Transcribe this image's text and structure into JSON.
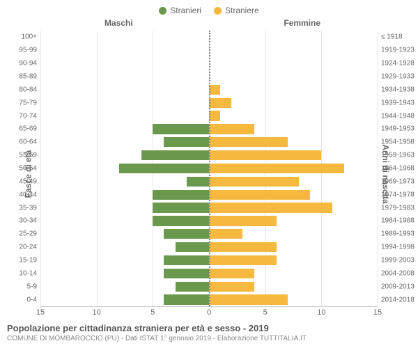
{
  "legend": {
    "series_m": {
      "label": "Stranieri",
      "color": "#6a994e"
    },
    "series_f": {
      "label": "Straniere",
      "color": "#f4b93e"
    }
  },
  "headers": {
    "male": "Maschi",
    "female": "Femmine"
  },
  "axis_labels": {
    "left": "Fasce di età",
    "right": "Anni di nascita"
  },
  "chart": {
    "type": "population-pyramid",
    "xlim": 15,
    "x_ticks": [
      15,
      10,
      5,
      0,
      5,
      10,
      15
    ],
    "background_color": "#ffffff",
    "grid_color": "#e5e5e5",
    "zero_line_color": "#888888",
    "male_color": "#6a994e",
    "female_color": "#f4b93e",
    "label_fontsize": 10,
    "tick_fontsize": 11,
    "rows": [
      {
        "age": "100+",
        "cohort": "≤ 1918",
        "m": 0,
        "f": 0
      },
      {
        "age": "95-99",
        "cohort": "1919-1923",
        "m": 0,
        "f": 0
      },
      {
        "age": "90-94",
        "cohort": "1924-1928",
        "m": 0,
        "f": 0
      },
      {
        "age": "85-89",
        "cohort": "1929-1933",
        "m": 0,
        "f": 0
      },
      {
        "age": "80-84",
        "cohort": "1934-1938",
        "m": 0,
        "f": 1
      },
      {
        "age": "75-79",
        "cohort": "1939-1943",
        "m": 0,
        "f": 2
      },
      {
        "age": "70-74",
        "cohort": "1944-1948",
        "m": 0,
        "f": 1
      },
      {
        "age": "65-69",
        "cohort": "1949-1953",
        "m": 5,
        "f": 4
      },
      {
        "age": "60-64",
        "cohort": "1954-1958",
        "m": 4,
        "f": 7
      },
      {
        "age": "55-59",
        "cohort": "1959-1963",
        "m": 6,
        "f": 10
      },
      {
        "age": "50-54",
        "cohort": "1964-1968",
        "m": 8,
        "f": 12
      },
      {
        "age": "45-49",
        "cohort": "1969-1973",
        "m": 2,
        "f": 8
      },
      {
        "age": "40-44",
        "cohort": "1974-1978",
        "m": 5,
        "f": 9
      },
      {
        "age": "35-39",
        "cohort": "1979-1983",
        "m": 5,
        "f": 11
      },
      {
        "age": "30-34",
        "cohort": "1984-1988",
        "m": 5,
        "f": 6
      },
      {
        "age": "25-29",
        "cohort": "1989-1993",
        "m": 4,
        "f": 3
      },
      {
        "age": "20-24",
        "cohort": "1994-1998",
        "m": 3,
        "f": 6
      },
      {
        "age": "15-19",
        "cohort": "1999-2003",
        "m": 4,
        "f": 6
      },
      {
        "age": "10-14",
        "cohort": "2004-2008",
        "m": 4,
        "f": 4
      },
      {
        "age": "5-9",
        "cohort": "2009-2013",
        "m": 3,
        "f": 4
      },
      {
        "age": "0-4",
        "cohort": "2014-2018",
        "m": 4,
        "f": 7
      }
    ]
  },
  "footer": {
    "title": "Popolazione per cittadinanza straniera per età e sesso - 2019",
    "subtitle": "COMUNE DI MOMBAROCCIO (PU) - Dati ISTAT 1° gennaio 2019 - Elaborazione TUTTITALIA.IT"
  }
}
